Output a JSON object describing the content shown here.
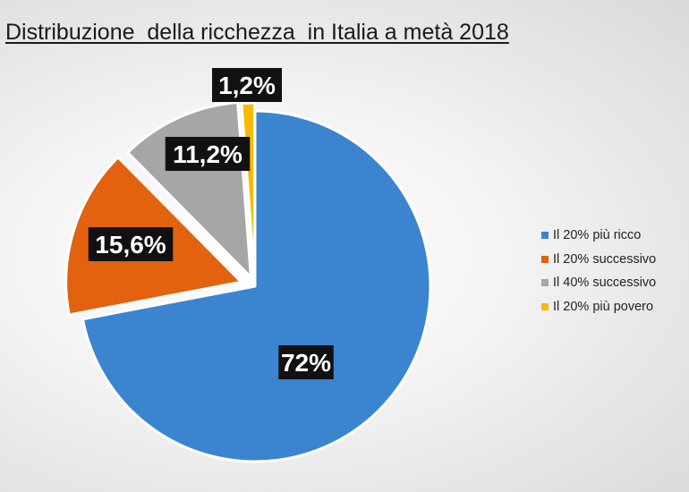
{
  "chart_data": {
    "type": "pie",
    "title": "Distribuzione  della ricchezza  in Italia a metà 2018",
    "categories": [
      "Il 20% più ricco",
      "Il 20% successivo",
      "Il 40% successivo",
      "Il 20% più povero"
    ],
    "values": [
      72,
      15.6,
      11.2,
      1.2
    ],
    "data_labels": [
      "72%",
      "15,6%",
      "11,2%",
      "1,2%"
    ],
    "colors": [
      "#3b84d0",
      "#e2620f",
      "#a6a6a6",
      "#f4bb00"
    ],
    "exploded": true,
    "legend_position": "right"
  }
}
